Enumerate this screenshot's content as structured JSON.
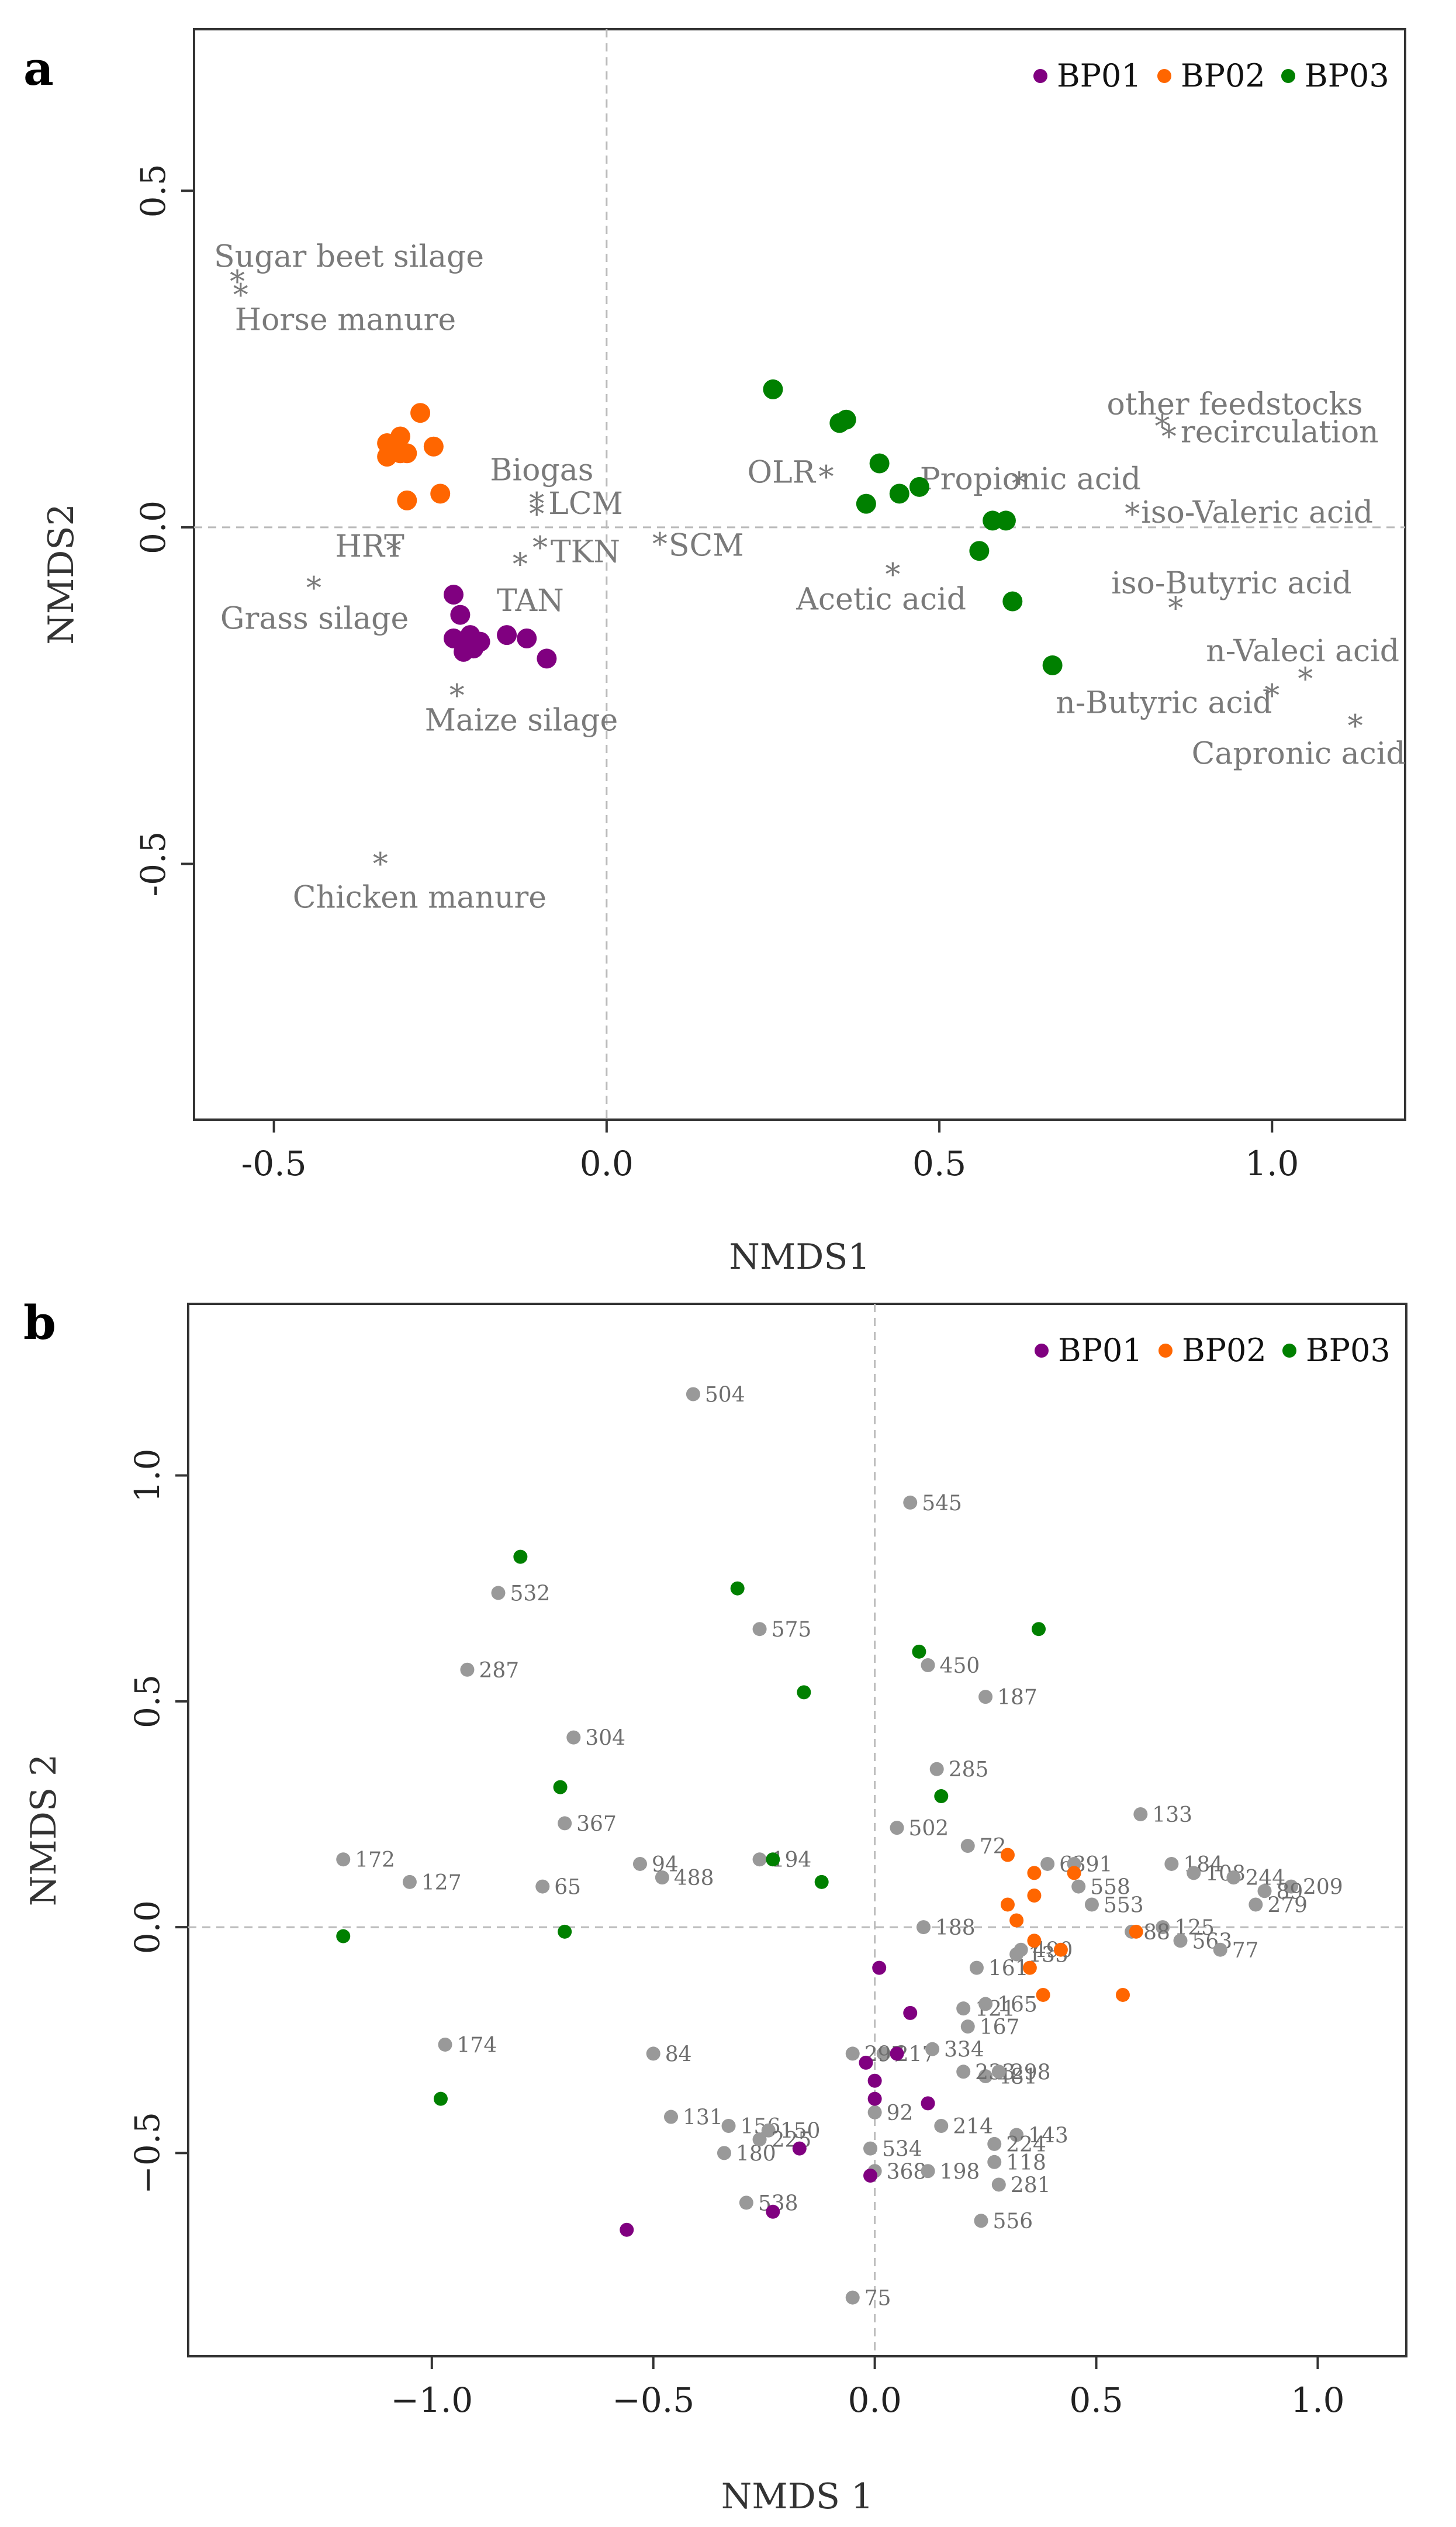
{
  "chart_data": [
    {
      "panel": "a",
      "type": "scatter",
      "xlabel": "NMDS1",
      "ylabel": "NMDS2",
      "xlim": [
        -0.62,
        1.2
      ],
      "ylim": [
        -0.88,
        0.74
      ],
      "xticks": [
        -0.5,
        0.0,
        0.5,
        1.0
      ],
      "yticks": [
        -0.5,
        0.0,
        0.5
      ],
      "xtick_labels": [
        "-0.5",
        "0.0",
        "0.5",
        "1.0"
      ],
      "ytick_labels": [
        "-0.5",
        "0.0",
        "0.5"
      ],
      "zero_lines": true,
      "legend_position": "top-right",
      "legend": [
        {
          "name": "BP01",
          "color": "#800080"
        },
        {
          "name": "BP02",
          "color": "#ff6600"
        },
        {
          "name": "BP03",
          "color": "#008000"
        }
      ],
      "series": [
        {
          "name": "BP01",
          "color": "#800080",
          "points": [
            [
              -0.23,
              -0.1
            ],
            [
              -0.22,
              -0.13
            ],
            [
              -0.23,
              -0.165
            ],
            [
              -0.215,
              -0.185
            ],
            [
              -0.2,
              -0.18
            ],
            [
              -0.205,
              -0.16
            ],
            [
              -0.19,
              -0.17
            ],
            [
              -0.15,
              -0.16
            ],
            [
              -0.12,
              -0.165
            ],
            [
              -0.09,
              -0.195
            ],
            [
              -0.21,
              -0.175
            ]
          ]
        },
        {
          "name": "BP02",
          "color": "#ff6600",
          "points": [
            [
              -0.28,
              0.17
            ],
            [
              -0.33,
              0.125
            ],
            [
              -0.31,
              0.135
            ],
            [
              -0.33,
              0.105
            ],
            [
              -0.31,
              0.11
            ],
            [
              -0.3,
              0.11
            ],
            [
              -0.26,
              0.12
            ],
            [
              -0.25,
              0.05
            ],
            [
              -0.3,
              0.04
            ],
            [
              -0.32,
              0.115
            ]
          ]
        },
        {
          "name": "BP03",
          "color": "#008000",
          "points": [
            [
              0.25,
              0.205
            ],
            [
              0.35,
              0.155
            ],
            [
              0.36,
              0.16
            ],
            [
              0.41,
              0.095
            ],
            [
              0.39,
              0.035
            ],
            [
              0.44,
              0.05
            ],
            [
              0.47,
              0.06
            ],
            [
              0.58,
              0.01
            ],
            [
              0.6,
              0.01
            ],
            [
              0.56,
              -0.035
            ],
            [
              0.61,
              -0.11
            ],
            [
              0.67,
              -0.205
            ]
          ]
        }
      ],
      "variables": [
        {
          "label": "Sugar beet silage",
          "x": -0.555,
          "y": 0.365
        },
        {
          "label": "Horse manure",
          "x": -0.55,
          "y": 0.345
        },
        {
          "label": "Biogas",
          "x": -0.105,
          "y": 0.035
        },
        {
          "label": "LCM",
          "x": -0.105,
          "y": 0.02
        },
        {
          "label": "HRT",
          "x": -0.32,
          "y": -0.035
        },
        {
          "label": "TKN",
          "x": -0.1,
          "y": -0.03
        },
        {
          "label": "TAN",
          "x": -0.13,
          "y": -0.055
        },
        {
          "label": "SCM",
          "x": 0.08,
          "y": -0.025
        },
        {
          "label": "Grass silage",
          "x": -0.44,
          "y": -0.09
        },
        {
          "label": "Maize silage",
          "x": -0.225,
          "y": -0.25
        },
        {
          "label": "Chicken manure",
          "x": -0.34,
          "y": -0.5
        },
        {
          "label": "OLR",
          "x": 0.33,
          "y": 0.075
        },
        {
          "label": "Propionic acid",
          "x": 0.62,
          "y": 0.065
        },
        {
          "label": "Acetic acid",
          "x": 0.43,
          "y": -0.07
        },
        {
          "label": "other feedstocks",
          "x": 0.835,
          "y": 0.15
        },
        {
          "label": "recirculation",
          "x": 0.845,
          "y": 0.135
        },
        {
          "label": "iso-Valeric acid",
          "x": 0.79,
          "y": 0.02
        },
        {
          "label": "iso-Butyric acid",
          "x": 0.855,
          "y": -0.12
        },
        {
          "label": "n-Valeci acid",
          "x": 1.05,
          "y": -0.225
        },
        {
          "label": "n-Butyric acid",
          "x": 1.0,
          "y": -0.25
        },
        {
          "label": "Capronic acid",
          "x": 1.125,
          "y": -0.295
        }
      ]
    },
    {
      "panel": "b",
      "type": "scatter",
      "xlabel": "NMDS 1",
      "ylabel": "NMDS 2",
      "xlim": [
        -1.55,
        1.2
      ],
      "ylim": [
        -0.95,
        1.38
      ],
      "xticks": [
        -1.0,
        -0.5,
        0.0,
        0.5,
        1.0
      ],
      "yticks": [
        -0.5,
        0.0,
        0.5,
        1.0
      ],
      "xtick_labels": [
        "−1.0",
        "−0.5",
        "0.0",
        "0.5",
        "1.0"
      ],
      "ytick_labels": [
        "−0.5",
        "0.0",
        "0.5",
        "1.0"
      ],
      "zero_lines": true,
      "legend_position": "top-right",
      "legend": [
        {
          "name": "BP01",
          "color": "#800080"
        },
        {
          "name": "BP02",
          "color": "#ff6600"
        },
        {
          "name": "BP03",
          "color": "#008000"
        }
      ],
      "series": [
        {
          "name": "BP01",
          "color": "#800080",
          "points": [
            [
              0.01,
              -0.09
            ],
            [
              0.08,
              -0.19
            ],
            [
              0.05,
              -0.28
            ],
            [
              -0.02,
              -0.3
            ],
            [
              0.0,
              -0.34
            ],
            [
              0.0,
              -0.38
            ],
            [
              0.12,
              -0.39
            ],
            [
              -0.17,
              -0.49
            ],
            [
              -0.01,
              -0.55
            ],
            [
              -0.23,
              -0.63
            ],
            [
              -0.56,
              -0.67
            ]
          ]
        },
        {
          "name": "BP02",
          "color": "#ff6600",
          "points": [
            [
              0.3,
              0.16
            ],
            [
              0.36,
              0.12
            ],
            [
              0.36,
              0.07
            ],
            [
              0.3,
              0.05
            ],
            [
              0.32,
              0.015
            ],
            [
              0.45,
              0.12
            ],
            [
              0.59,
              -0.01
            ],
            [
              0.36,
              -0.03
            ],
            [
              0.42,
              -0.05
            ],
            [
              0.38,
              -0.15
            ],
            [
              0.35,
              -0.09
            ],
            [
              0.56,
              -0.15
            ]
          ]
        },
        {
          "name": "BP03",
          "color": "#008000",
          "points": [
            [
              -0.8,
              0.82
            ],
            [
              -0.31,
              0.75
            ],
            [
              0.37,
              0.66
            ],
            [
              0.1,
              0.61
            ],
            [
              -0.16,
              0.52
            ],
            [
              -0.71,
              0.31
            ],
            [
              0.15,
              0.29
            ],
            [
              -0.23,
              0.15
            ],
            [
              -0.12,
              0.1
            ],
            [
              -1.2,
              -0.02
            ],
            [
              -0.7,
              -0.01
            ],
            [
              -0.98,
              -0.38
            ]
          ]
        }
      ],
      "samples": [
        {
          "label": "504",
          "x": -0.41,
          "y": 1.18
        },
        {
          "label": "545",
          "x": 0.08,
          "y": 0.94
        },
        {
          "label": "532",
          "x": -0.85,
          "y": 0.74
        },
        {
          "label": "575",
          "x": -0.26,
          "y": 0.66
        },
        {
          "label": "287",
          "x": -0.92,
          "y": 0.57
        },
        {
          "label": "450",
          "x": 0.12,
          "y": 0.58
        },
        {
          "label": "187",
          "x": 0.25,
          "y": 0.51
        },
        {
          "label": "304",
          "x": -0.68,
          "y": 0.42
        },
        {
          "label": "285",
          "x": 0.14,
          "y": 0.35
        },
        {
          "label": "367",
          "x": -0.7,
          "y": 0.23
        },
        {
          "label": "133",
          "x": 0.6,
          "y": 0.25
        },
        {
          "label": "502",
          "x": 0.05,
          "y": 0.22
        },
        {
          "label": "72",
          "x": 0.21,
          "y": 0.18
        },
        {
          "label": "63",
          "x": 0.39,
          "y": 0.14
        },
        {
          "label": "91",
          "x": 0.45,
          "y": 0.14
        },
        {
          "label": "184",
          "x": 0.67,
          "y": 0.14
        },
        {
          "label": "108",
          "x": 0.72,
          "y": 0.12
        },
        {
          "label": "244",
          "x": 0.81,
          "y": 0.11
        },
        {
          "label": "209",
          "x": 0.94,
          "y": 0.09
        },
        {
          "label": "89",
          "x": 0.88,
          "y": 0.08
        },
        {
          "label": "172",
          "x": -1.2,
          "y": 0.15
        },
        {
          "label": "94",
          "x": -0.53,
          "y": 0.14
        },
        {
          "label": "194",
          "x": -0.26,
          "y": 0.15
        },
        {
          "label": "488",
          "x": -0.48,
          "y": 0.11
        },
        {
          "label": "127",
          "x": -1.05,
          "y": 0.1
        },
        {
          "label": "65",
          "x": -0.75,
          "y": 0.09
        },
        {
          "label": "558",
          "x": 0.46,
          "y": 0.09
        },
        {
          "label": "553",
          "x": 0.49,
          "y": 0.05
        },
        {
          "label": "125",
          "x": 0.65,
          "y": 0.0
        },
        {
          "label": "279",
          "x": 0.86,
          "y": 0.05
        },
        {
          "label": "88",
          "x": 0.58,
          "y": -0.01
        },
        {
          "label": "563",
          "x": 0.69,
          "y": -0.03
        },
        {
          "label": "77",
          "x": 0.78,
          "y": -0.05
        },
        {
          "label": "188",
          "x": 0.11,
          "y": 0.0
        },
        {
          "label": "490",
          "x": 0.33,
          "y": -0.05
        },
        {
          "label": "135",
          "x": 0.32,
          "y": -0.06
        },
        {
          "label": "161",
          "x": 0.23,
          "y": -0.09
        },
        {
          "label": "121",
          "x": 0.2,
          "y": -0.18
        },
        {
          "label": "165",
          "x": 0.25,
          "y": -0.17
        },
        {
          "label": "167",
          "x": 0.21,
          "y": -0.22
        },
        {
          "label": "174",
          "x": -0.97,
          "y": -0.26
        },
        {
          "label": "84",
          "x": -0.5,
          "y": -0.28
        },
        {
          "label": "217",
          "x": 0.02,
          "y": -0.28
        },
        {
          "label": "334",
          "x": 0.13,
          "y": -0.27
        },
        {
          "label": "481",
          "x": 0.25,
          "y": -0.33
        },
        {
          "label": "233",
          "x": 0.2,
          "y": -0.32
        },
        {
          "label": "298",
          "x": 0.28,
          "y": -0.32
        },
        {
          "label": "297",
          "x": -0.05,
          "y": -0.28
        },
        {
          "label": "92",
          "x": 0.0,
          "y": -0.41
        },
        {
          "label": "214",
          "x": 0.15,
          "y": -0.44
        },
        {
          "label": "143",
          "x": 0.32,
          "y": -0.46
        },
        {
          "label": "131",
          "x": -0.46,
          "y": -0.42
        },
        {
          "label": "156",
          "x": -0.33,
          "y": -0.44
        },
        {
          "label": "150",
          "x": -0.24,
          "y": -0.45
        },
        {
          "label": "180",
          "x": -0.34,
          "y": -0.5
        },
        {
          "label": "225",
          "x": -0.26,
          "y": -0.47
        },
        {
          "label": "534",
          "x": -0.01,
          "y": -0.49
        },
        {
          "label": "224",
          "x": 0.27,
          "y": -0.48
        },
        {
          "label": "118",
          "x": 0.27,
          "y": -0.52
        },
        {
          "label": "368",
          "x": 0.0,
          "y": -0.54
        },
        {
          "label": "198",
          "x": 0.12,
          "y": -0.54
        },
        {
          "label": "281",
          "x": 0.28,
          "y": -0.57
        },
        {
          "label": "538",
          "x": -0.29,
          "y": -0.61
        },
        {
          "label": "556",
          "x": 0.24,
          "y": -0.65
        },
        {
          "label": "75",
          "x": -0.05,
          "y": -0.82
        }
      ]
    }
  ]
}
